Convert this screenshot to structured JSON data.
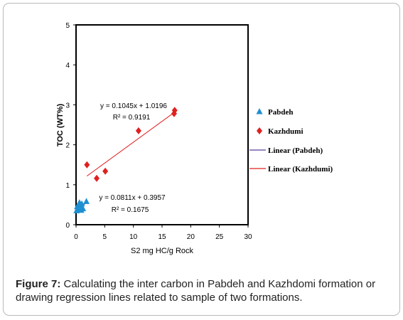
{
  "chart_data": {
    "type": "scatter",
    "xlabel": "S2 mg HC/g Rock",
    "ylabel": "TOC (WT%)",
    "xlim": [
      0,
      30
    ],
    "ylim": [
      0,
      5
    ],
    "xticks": [
      "0",
      "5",
      "10",
      "15",
      "20",
      "25",
      "30"
    ],
    "yticks": [
      "0",
      "1",
      "2",
      "3",
      "4",
      "5"
    ],
    "grid": false,
    "legend_position": "right",
    "series": [
      {
        "name": "Pabdeh",
        "marker": "triangle",
        "color": "#1f8fd0",
        "points": [
          [
            0.1,
            0.35
          ],
          [
            0.2,
            0.45
          ],
          [
            0.3,
            0.4
          ],
          [
            0.4,
            0.5
          ],
          [
            0.5,
            0.38
          ],
          [
            0.6,
            0.55
          ],
          [
            0.7,
            0.42
          ],
          [
            0.8,
            0.48
          ],
          [
            0.9,
            0.36
          ],
          [
            1.0,
            0.52
          ],
          [
            1.2,
            0.4
          ],
          [
            1.8,
            0.58
          ]
        ]
      },
      {
        "name": "Kazhdumi",
        "marker": "diamond",
        "color": "#e02020",
        "points": [
          [
            1.9,
            1.5
          ],
          [
            3.6,
            1.16
          ],
          [
            5.1,
            1.34
          ],
          [
            10.9,
            2.35
          ],
          [
            17.1,
            2.78
          ],
          [
            17.2,
            2.86
          ]
        ]
      }
    ],
    "trendlines": [
      {
        "name": "Linear (Pabdeh)",
        "color": "#5a3f9a",
        "slope": 0.0811,
        "intercept": 0.3957,
        "x_range": [
          0.1,
          1.8
        ],
        "equation": "y = 0.0811x + 0.3957",
        "r2": "R² = 0.1675"
      },
      {
        "name": "Linear (Kazhdumi)",
        "color": "#e02020",
        "slope": 0.1045,
        "intercept": 1.0196,
        "x_range": [
          1.9,
          17.2
        ],
        "equation": "y = 0.1045x + 1.0196",
        "r2": "R² = 0.9191"
      }
    ]
  },
  "caption": {
    "label": "Figure 7:",
    "text": " Calculating the inter carbon in Pabdeh and Kazhdomi formation or drawing regression lines related to sample of two formations."
  }
}
